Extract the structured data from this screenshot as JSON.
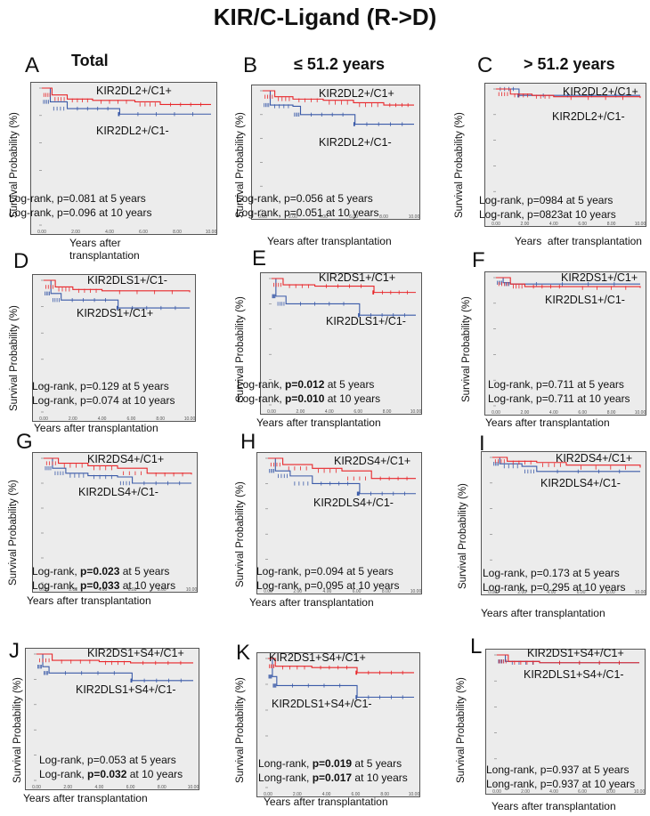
{
  "title": "KIR/C-Ligand (R->D)",
  "column_headers": [
    "Total",
    "≤ 51.2 years",
    "> 51.2 years"
  ],
  "y_axis_label": "Survival Probability (%)",
  "colors": {
    "red_series": "#e8262a",
    "blue_series": "#3a5aa8",
    "plot_bg": "#ececec"
  },
  "panels": [
    {
      "letter": "A",
      "xlabel": "Years after\ntransplantation",
      "label_top": "KIR2DL2+/C1+",
      "label_bottom": "KIR2DL2+/C1-",
      "stat5": {
        "pre": "Log-rank, p=0.081",
        "bold": "",
        "post": " at 5 years"
      },
      "stat10": {
        "pre": "Log-rank, p=0.096",
        "bold": "",
        "post": " at 10 years"
      }
    },
    {
      "letter": "B",
      "xlabel": "Years after transplantation",
      "label_top": "KIR2DL2+/C1+",
      "label_bottom": "KIR2DL2+/C1-",
      "stat5": {
        "pre": "Log-rank, p=0.056",
        "bold": "",
        "post": " at 5 years"
      },
      "stat10": {
        "pre": "Log-rank, p=0.051",
        "bold": "",
        "post": " at 10 years"
      }
    },
    {
      "letter": "C",
      "xlabel": "Years  after transplantation",
      "label_top": "KIR2DL2+/C1+",
      "label_bottom": "KIR2DL2+/C1-",
      "stat5": {
        "pre": "Log-rank, p=0984",
        "bold": "",
        "post": " at 5 years"
      },
      "stat10": {
        "pre": "Log-rank, p=0823",
        "bold": "",
        "post": "at 10 years"
      }
    },
    {
      "letter": "D",
      "xlabel": "Years after transplantation",
      "label_top": "KIR2DLS1+/C1-",
      "label_bottom": "KIR2DS1+/C1+",
      "stat5": {
        "pre": "Log-rank, p=0.129",
        "bold": "",
        "post": " at 5 years"
      },
      "stat10": {
        "pre": "Log-rank, p=0.074",
        "bold": "",
        "post": " at 10 years"
      }
    },
    {
      "letter": "E",
      "xlabel": "Years after transplantation",
      "label_top": "KIR2DS1+/C1+",
      "label_bottom": "KIR2DLS1+/C1-",
      "stat5": {
        "pre": "Log-rank, ",
        "bold": "p=0.012",
        "post": " at 5 years"
      },
      "stat10": {
        "pre": "Log-rank, ",
        "bold": "p=0.010",
        "post": " at 10 years"
      }
    },
    {
      "letter": "F",
      "xlabel": "Years after transplantation",
      "label_top": "KIR2DS1+/C1+",
      "label_bottom": "KIR2DLS1+/C1-",
      "stat5": {
        "pre": "Log-rank, p=0.711",
        "bold": "",
        "post": " at 5 years"
      },
      "stat10": {
        "pre": "Log-rank, p=0.711",
        "bold": "",
        "post": " at 10 years"
      }
    },
    {
      "letter": "G",
      "xlabel": "Years after transplantation",
      "label_top": "KIR2DS4+/C1+",
      "label_bottom": "KIR2DLS4+/C1-",
      "stat5": {
        "pre": "Log-rank, ",
        "bold": "p=0.023",
        "post": " at 5 years"
      },
      "stat10": {
        "pre": "Log-rank, ",
        "bold": "p=0.033",
        "post": " at 10 years"
      }
    },
    {
      "letter": "H",
      "xlabel": "Years after transplantation",
      "label_top": "KIR2DS4+/C1+",
      "label_bottom": "KIR2DLS4+/C1-",
      "stat5": {
        "pre": "Log-rank, p=0.094",
        "bold": "",
        "post": " at 5 years"
      },
      "stat10": {
        "pre": "Log-rank, p=0.095",
        "bold": "",
        "post": " at 10 years"
      }
    },
    {
      "letter": "I",
      "xlabel": "Years after transplantation",
      "label_top": "KIR2DS4+/C1+",
      "label_bottom": "KIR2DLS4+/C1-",
      "stat5": {
        "pre": "Log-rank, p=0.173",
        "bold": "",
        "post": " at 5 years"
      },
      "stat10": {
        "pre": "Log-rank, p=0.295",
        "bold": "",
        "post": " at 10 years"
      }
    },
    {
      "letter": "J",
      "xlabel": "Years after transplantation",
      "label_top": "KIR2DS1+S4+/C1+",
      "label_bottom": "KIR2DLS1+S4+/C1-",
      "stat5": {
        "pre": "Log-rank, p=0.053",
        "bold": "",
        "post": " at 5 years"
      },
      "stat10": {
        "pre": "Log-rank, ",
        "bold": "p=0.032",
        "post": " at 10 years"
      }
    },
    {
      "letter": "K",
      "xlabel": "Years after transplantation",
      "label_top": "KIR2DS1+S4+/C1+",
      "label_bottom": "KIR2DLS1+S4+/C1-",
      "stat5": {
        "pre": "Long-rank, ",
        "bold": "p=0.019",
        "post": " at 5 years"
      },
      "stat10": {
        "pre": "Long-rank, ",
        "bold": "p=0.017",
        "post": " at 10 years"
      }
    },
    {
      "letter": "L",
      "xlabel": "Years after transplantation",
      "label_top": "KIR2DS1+S4+/C1+",
      "label_bottom": "KIR2DLS1+S4+/C1-",
      "stat5": {
        "pre": "Long-rank, p=0.937",
        "bold": "",
        "post": " at 5 years"
      },
      "stat10": {
        "pre": "Long-rank, p=0.937",
        "bold": "",
        "post": " at 10 years"
      }
    }
  ],
  "chart_data": {
    "type": "line",
    "subtype": "kaplan-meier",
    "x_range": [
      0,
      10
    ],
    "y_range": [
      0,
      1
    ],
    "x_ticks": [
      "0.00",
      "2.00",
      "4.00",
      "6.00",
      "8.00",
      "10.00"
    ],
    "curves": [
      {
        "panel": "A",
        "red": [
          [
            0,
            1
          ],
          [
            0.6,
            0.95
          ],
          [
            1.5,
            0.92
          ],
          [
            3,
            0.91
          ],
          [
            5.5,
            0.9
          ],
          [
            7,
            0.88
          ],
          [
            10,
            0.88
          ]
        ],
        "blue": [
          [
            0,
            1
          ],
          [
            0.5,
            0.9
          ],
          [
            1.5,
            0.85
          ],
          [
            4.5,
            0.85
          ],
          [
            4.6,
            0.81
          ],
          [
            10,
            0.81
          ]
        ]
      },
      {
        "panel": "B",
        "red": [
          [
            0,
            1
          ],
          [
            0.8,
            0.95
          ],
          [
            2,
            0.93
          ],
          [
            4,
            0.92
          ],
          [
            6,
            0.9
          ],
          [
            8,
            0.88
          ],
          [
            10,
            0.88
          ]
        ],
        "blue": [
          [
            0,
            1
          ],
          [
            0.5,
            0.88
          ],
          [
            2,
            0.87
          ],
          [
            2.5,
            0.8
          ],
          [
            6,
            0.8
          ],
          [
            6.1,
            0.72
          ],
          [
            10,
            0.72
          ]
        ]
      },
      {
        "panel": "C",
        "red": [
          [
            0,
            1
          ],
          [
            1,
            0.96
          ],
          [
            2.5,
            0.95
          ],
          [
            4,
            0.94
          ],
          [
            10,
            0.93
          ]
        ],
        "blue": [
          [
            0,
            1
          ],
          [
            1.5,
            1
          ],
          [
            1.6,
            0.95
          ],
          [
            10,
            0.95
          ]
        ]
      },
      {
        "panel": "D",
        "red": [
          [
            0,
            1
          ],
          [
            0.8,
            0.95
          ],
          [
            2,
            0.93
          ],
          [
            4,
            0.92
          ],
          [
            10,
            0.91
          ]
        ],
        "blue": [
          [
            0,
            1
          ],
          [
            0.5,
            0.9
          ],
          [
            1.2,
            0.85
          ],
          [
            5,
            0.85
          ],
          [
            5.1,
            0.79
          ],
          [
            10,
            0.79
          ]
        ]
      },
      {
        "panel": "E",
        "red": [
          [
            0,
            1
          ],
          [
            0.8,
            0.95
          ],
          [
            3,
            0.94
          ],
          [
            7,
            0.94
          ],
          [
            7.1,
            0.89
          ],
          [
            10,
            0.89
          ]
        ],
        "blue": [
          [
            0,
            1
          ],
          [
            0.3,
            0.86
          ],
          [
            1,
            0.8
          ],
          [
            6,
            0.8
          ],
          [
            6.1,
            0.71
          ],
          [
            10,
            0.71
          ]
        ]
      },
      {
        "panel": "F",
        "red": [
          [
            0,
            1
          ],
          [
            1,
            0.95
          ],
          [
            2,
            0.93
          ],
          [
            5,
            0.93
          ],
          [
            10,
            0.92
          ]
        ],
        "blue": [
          [
            0,
            1
          ],
          [
            0.5,
            0.96
          ],
          [
            1,
            0.95
          ],
          [
            10,
            0.95
          ]
        ]
      },
      {
        "panel": "G",
        "red": [
          [
            0,
            1
          ],
          [
            1,
            0.96
          ],
          [
            3,
            0.94
          ],
          [
            5,
            0.92
          ],
          [
            7,
            0.88
          ],
          [
            10,
            0.87
          ]
        ],
        "blue": [
          [
            0,
            1
          ],
          [
            0.6,
            0.92
          ],
          [
            1.5,
            0.88
          ],
          [
            3,
            0.86
          ],
          [
            5,
            0.85
          ],
          [
            6,
            0.8
          ],
          [
            10,
            0.8
          ]
        ]
      },
      {
        "panel": "H",
        "red": [
          [
            0,
            1
          ],
          [
            1,
            0.95
          ],
          [
            3,
            0.92
          ],
          [
            5,
            0.9
          ],
          [
            7,
            0.84
          ],
          [
            10,
            0.84
          ]
        ],
        "blue": [
          [
            0,
            1
          ],
          [
            0.5,
            0.9
          ],
          [
            1.5,
            0.86
          ],
          [
            3,
            0.8
          ],
          [
            6,
            0.8
          ],
          [
            6.2,
            0.72
          ],
          [
            10,
            0.72
          ]
        ]
      },
      {
        "panel": "I",
        "red": [
          [
            0,
            1
          ],
          [
            1,
            0.97
          ],
          [
            3,
            0.96
          ],
          [
            5,
            0.94
          ],
          [
            10,
            0.92
          ]
        ],
        "blue": [
          [
            0,
            1
          ],
          [
            0.5,
            0.95
          ],
          [
            2,
            0.93
          ],
          [
            3,
            0.89
          ],
          [
            10,
            0.89
          ]
        ]
      },
      {
        "panel": "J",
        "red": [
          [
            0,
            1
          ],
          [
            1,
            0.95
          ],
          [
            4,
            0.94
          ],
          [
            6,
            0.93
          ],
          [
            10,
            0.93
          ]
        ],
        "blue": [
          [
            0,
            1
          ],
          [
            0.4,
            0.9
          ],
          [
            0.8,
            0.85
          ],
          [
            6,
            0.85
          ],
          [
            6.1,
            0.79
          ],
          [
            10,
            0.79
          ]
        ]
      },
      {
        "panel": "K",
        "red": [
          [
            0,
            1
          ],
          [
            0.5,
            0.94
          ],
          [
            3,
            0.93
          ],
          [
            6,
            0.93
          ],
          [
            6.1,
            0.89
          ],
          [
            10,
            0.89
          ]
        ],
        "blue": [
          [
            0,
            1
          ],
          [
            0.3,
            0.86
          ],
          [
            0.6,
            0.79
          ],
          [
            6,
            0.79
          ],
          [
            6.1,
            0.7
          ],
          [
            10,
            0.7
          ]
        ]
      },
      {
        "panel": "L",
        "red": [
          [
            0,
            1
          ],
          [
            0.8,
            0.95
          ],
          [
            3,
            0.94
          ],
          [
            10,
            0.94
          ]
        ],
        "blue": [
          [
            0,
            1
          ],
          [
            0.6,
            0.95
          ],
          [
            3,
            0.94
          ],
          [
            10,
            0.94
          ]
        ]
      }
    ]
  }
}
